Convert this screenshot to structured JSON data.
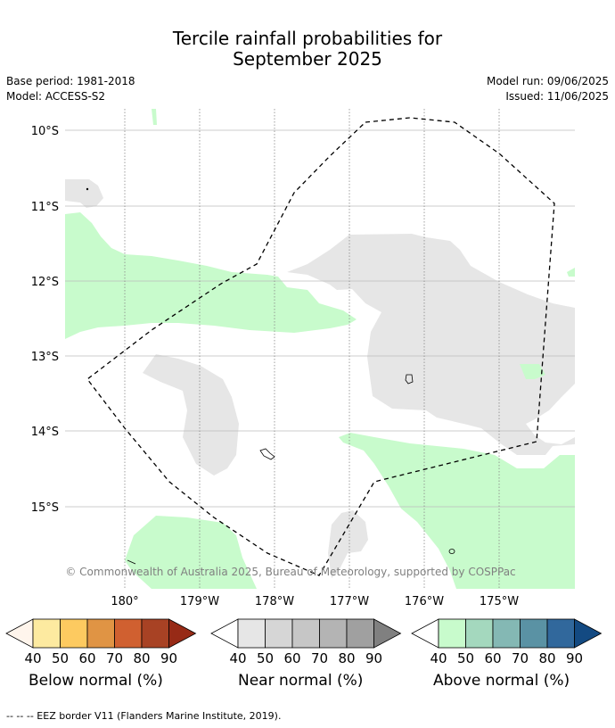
{
  "title": {
    "line1": "Tercile rainfall probabilities for",
    "line2": "September 2025"
  },
  "meta": {
    "base_period": "Base period: 1981-2018",
    "model": "Model: ACCESS-S2",
    "model_run": "Model run: 09/06/2025",
    "issued": "Issued: 11/06/2025"
  },
  "axes": {
    "lat_labels": [
      "10°S",
      "11°S",
      "12°S",
      "13°S",
      "14°S",
      "15°S"
    ],
    "lon_labels": [
      "180°",
      "179°W",
      "178°W",
      "177°W",
      "176°W",
      "175°W"
    ]
  },
  "copyright": "© Commonwealth of Australia 2025, Bureau of Meteorology, supported by COSPPac",
  "colorbars": [
    {
      "label": "Below normal (%)",
      "ticks": [
        "40",
        "50",
        "60",
        "70",
        "80",
        "90"
      ],
      "colors": [
        "#fff5ec",
        "#fdeaa0",
        "#fdca60",
        "#e09444",
        "#d06030",
        "#a84224",
        "#972a16"
      ]
    },
    {
      "label": "Near normal (%)",
      "ticks": [
        "40",
        "50",
        "60",
        "70",
        "80",
        "90"
      ],
      "colors": [
        "#ffffff",
        "#e6e6e6",
        "#d6d6d6",
        "#c6c6c6",
        "#b4b4b4",
        "#a0a0a0",
        "#808080"
      ]
    },
    {
      "label": "Above normal (%)",
      "ticks": [
        "40",
        "50",
        "60",
        "70",
        "80",
        "90"
      ],
      "colors": [
        "#ffffff",
        "#c8fbcc",
        "#a4d8be",
        "#84b8b4",
        "#5a92a4",
        "#31689c",
        "#134a82"
      ]
    }
  ],
  "footer": "--  --  -- EEZ border V11 (Flanders Marine Institute, 2019)."
}
